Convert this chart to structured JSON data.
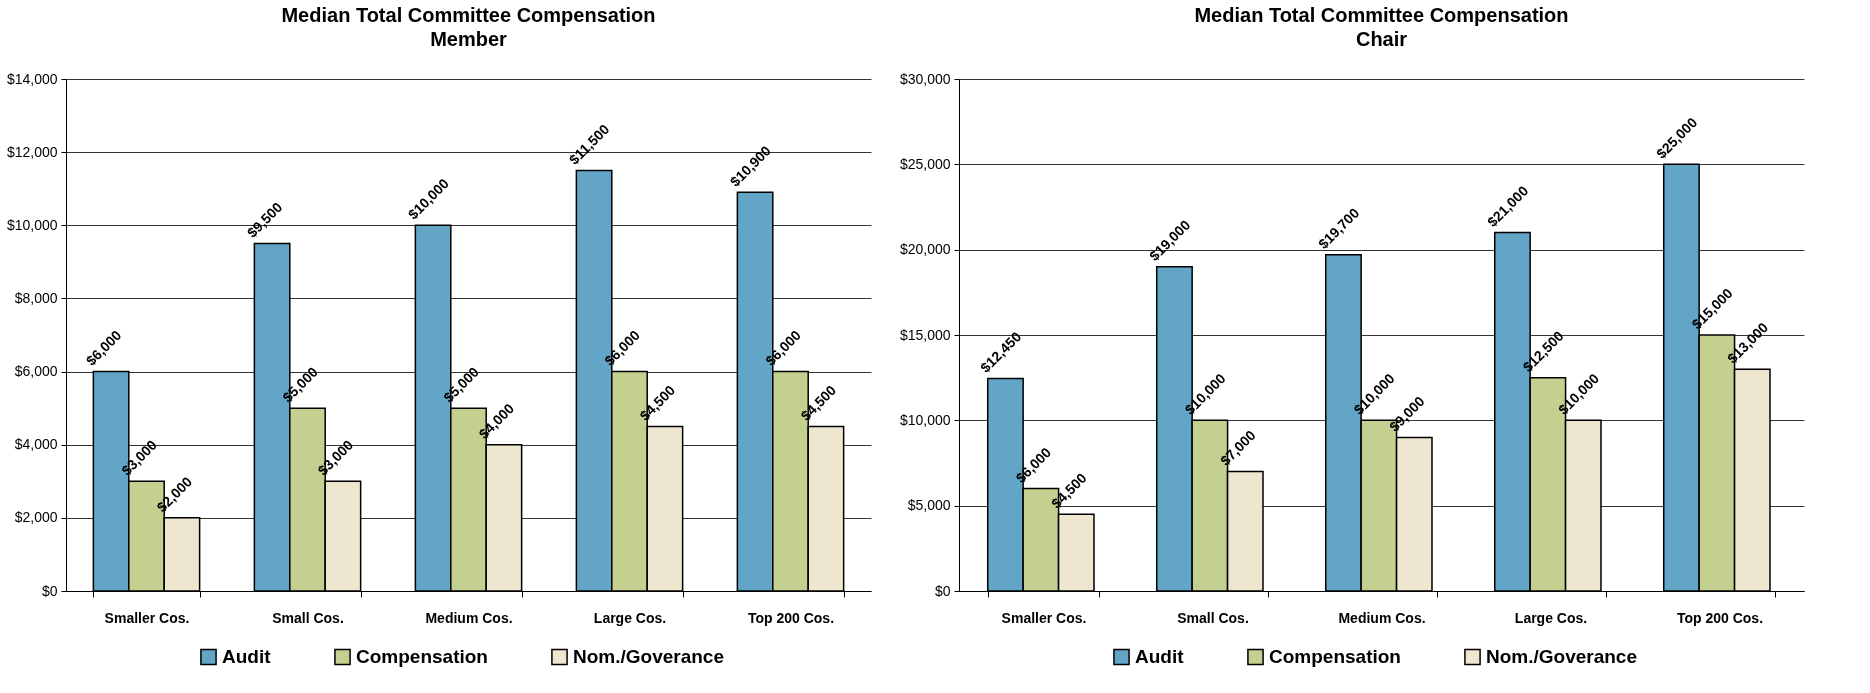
{
  "chart_data": [
    {
      "type": "bar",
      "title": "Median Total Committee Compensation",
      "subtitle": "Member",
      "categories": [
        "Smaller Cos.",
        "Small Cos.",
        "Medium Cos.",
        "Large Cos.",
        "Top 200 Cos."
      ],
      "series": [
        {
          "name": "Audit",
          "color": "#62a5c6",
          "values": [
            6000,
            9500,
            10000,
            11500,
            10900
          ],
          "value_labels": [
            "$6,000",
            "$9,500",
            "$10,000",
            "$11,500",
            "$10,900"
          ]
        },
        {
          "name": "Compensation",
          "color": "#c4d08f",
          "values": [
            3000,
            5000,
            5000,
            6000,
            6000
          ],
          "value_labels": [
            "$3,000",
            "$5,000",
            "$5,000",
            "$6,000",
            "$6,000"
          ]
        },
        {
          "name": "Nom./Goverance",
          "color": "#eee6cf",
          "values": [
            2000,
            3000,
            4000,
            4500,
            4500
          ],
          "value_labels": [
            "$2,000",
            "$3,000",
            "$4,000",
            "$4,500",
            "$4,500"
          ]
        }
      ],
      "ylim": [
        0,
        14000
      ],
      "yticks": [
        {
          "value": 0,
          "label": "$0"
        },
        {
          "value": 2000,
          "label": "$2,000"
        },
        {
          "value": 4000,
          "label": "$4,000"
        },
        {
          "value": 6000,
          "label": "$6,000"
        },
        {
          "value": 8000,
          "label": "$8,000"
        },
        {
          "value": 10000,
          "label": "$10,000"
        },
        {
          "value": 12000,
          "label": "$12,000"
        },
        {
          "value": 14000,
          "label": "$14,000"
        }
      ],
      "grid": "y",
      "legend": "bottom"
    },
    {
      "type": "bar",
      "title": "Median Total Committee Compensation",
      "subtitle": "Chair",
      "categories": [
        "Smaller Cos.",
        "Small Cos.",
        "Medium Cos.",
        "Large Cos.",
        "Top 200 Cos."
      ],
      "series": [
        {
          "name": "Audit",
          "color": "#62a5c6",
          "values": [
            12450,
            19000,
            19700,
            21000,
            25000
          ],
          "value_labels": [
            "$12,450",
            "$19,000",
            "$19,700",
            "$21,000",
            "$25,000"
          ]
        },
        {
          "name": "Compensation",
          "color": "#c4d08f",
          "values": [
            6000,
            10000,
            10000,
            12500,
            15000
          ],
          "value_labels": [
            "$6,000",
            "$10,000",
            "$10,000",
            "$12,500",
            "$15,000"
          ]
        },
        {
          "name": "Nom./Goverance",
          "color": "#eee6cf",
          "values": [
            4500,
            7000,
            9000,
            10000,
            13000
          ],
          "value_labels": [
            "$4,500",
            "$7,000",
            "$9,000",
            "$10,000",
            "$13,000"
          ]
        }
      ],
      "ylim": [
        0,
        30000
      ],
      "yticks": [
        {
          "value": 0,
          "label": "$0"
        },
        {
          "value": 5000,
          "label": "$5,000"
        },
        {
          "value": 10000,
          "label": "$10,000"
        },
        {
          "value": 15000,
          "label": "$15,000"
        },
        {
          "value": 20000,
          "label": "$20,000"
        },
        {
          "value": 25000,
          "label": "$25,000"
        },
        {
          "value": 30000,
          "label": "$30,000"
        }
      ],
      "grid": "y",
      "legend": "bottom"
    }
  ]
}
